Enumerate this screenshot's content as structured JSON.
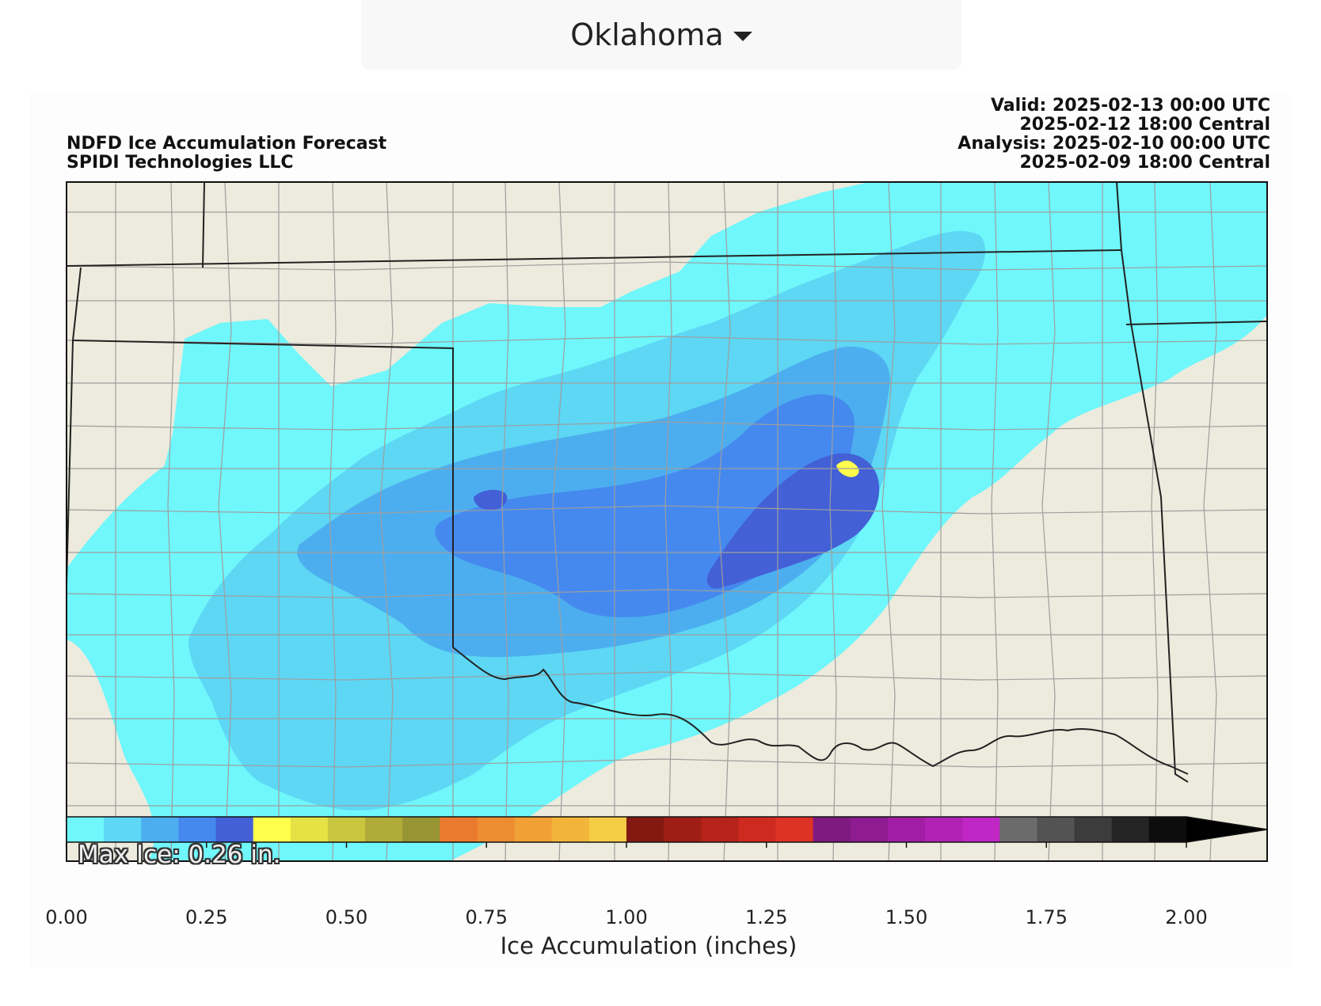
{
  "dropdown": {
    "selected": "Oklahoma"
  },
  "map": {
    "title": "NDFD Ice Accumulation Forecast",
    "subtitle": "SPIDI Technologies LLC",
    "valid_utc": "Valid: 2025-02-13 00:00 UTC",
    "valid_central": "2025-02-12 18:00 Central",
    "analysis_utc": "Analysis: 2025-02-10 00:00 UTC",
    "analysis_central": "2025-02-09 18:00 Central",
    "max_ice": "Max Ice: 0.26 in.",
    "land_color": "#ecebdd",
    "outside_color": "#fdfdfd"
  },
  "colorbar": {
    "label": "Ice Accumulation (inches)",
    "ticks": [
      "0.00",
      "0.25",
      "0.50",
      "0.75",
      "1.00",
      "1.25",
      "1.50",
      "1.75",
      "2.00"
    ],
    "tick_values": [
      0,
      0.25,
      0.5,
      0.75,
      1.0,
      1.25,
      1.5,
      1.75,
      2.0
    ],
    "extend": "max",
    "extend_color": "#000000",
    "colors": [
      "#6ff7fb",
      "#5dd7f4",
      "#4caeef",
      "#4589ef",
      "#4360d6",
      "#ffff4c",
      "#e5e245",
      "#cac63f",
      "#b0ab39",
      "#979433",
      "#ea7a2e",
      "#ed8c30",
      "#f0a034",
      "#f2b53a",
      "#f5cc45",
      "#821a12",
      "#9e1e16",
      "#b5231a",
      "#cf2a1f",
      "#dd3325",
      "#7f1a80",
      "#8e1b90",
      "#a11ea4",
      "#b122b4",
      "#c026c4",
      "#6b6b6b",
      "#535353",
      "#3c3c3c",
      "#242424",
      "#0d0d0d"
    ]
  }
}
